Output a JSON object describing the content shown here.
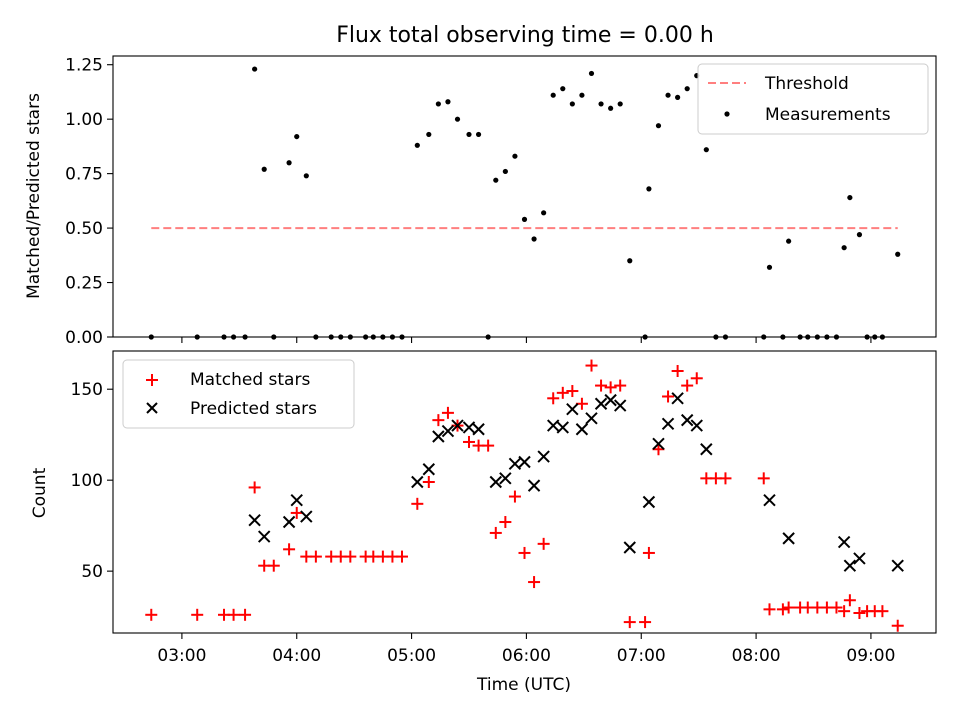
{
  "title": "Flux total observing time = 0.00 h",
  "chart_data": [
    {
      "type": "scatter",
      "ylabel": "Matched/Predicted stars",
      "ylim": [
        0,
        1.29
      ],
      "yticks": [
        "0.00",
        "0.25",
        "0.50",
        "0.75",
        "1.00",
        "1.25"
      ],
      "legend_position": "top-right",
      "threshold": {
        "name": "Threshold",
        "value": 0.5,
        "x_range": [
          "02:44",
          "09:14"
        ],
        "color": "#ff7f7f"
      },
      "series": [
        {
          "name": "Measurements",
          "color": "#000000",
          "points": [
            [
              "02:44",
              0.0
            ],
            [
              "03:08",
              0.0
            ],
            [
              "03:22",
              0.0
            ],
            [
              "03:27",
              0.0
            ],
            [
              "03:33",
              0.0
            ],
            [
              "03:38",
              1.23
            ],
            [
              "03:43",
              0.77
            ],
            [
              "03:48",
              0.0
            ],
            [
              "03:56",
              0.8
            ],
            [
              "04:00",
              0.92
            ],
            [
              "04:05",
              0.74
            ],
            [
              "04:10",
              0.0
            ],
            [
              "04:18",
              0.0
            ],
            [
              "04:23",
              0.0
            ],
            [
              "04:28",
              0.0
            ],
            [
              "04:36",
              0.0
            ],
            [
              "04:40",
              0.0
            ],
            [
              "04:45",
              0.0
            ],
            [
              "04:50",
              0.0
            ],
            [
              "04:55",
              0.0
            ],
            [
              "05:03",
              0.88
            ],
            [
              "05:09",
              0.93
            ],
            [
              "05:14",
              1.07
            ],
            [
              "05:19",
              1.08
            ],
            [
              "05:24",
              1.0
            ],
            [
              "05:30",
              0.93
            ],
            [
              "05:35",
              0.93
            ],
            [
              "05:40",
              0.0
            ],
            [
              "05:44",
              0.72
            ],
            [
              "05:49",
              0.76
            ],
            [
              "05:54",
              0.83
            ],
            [
              "05:59",
              0.54
            ],
            [
              "06:04",
              0.45
            ],
            [
              "06:09",
              0.57
            ],
            [
              "06:14",
              1.11
            ],
            [
              "06:19",
              1.14
            ],
            [
              "06:24",
              1.07
            ],
            [
              "06:29",
              1.11
            ],
            [
              "06:34",
              1.21
            ],
            [
              "06:39",
              1.07
            ],
            [
              "06:44",
              1.05
            ],
            [
              "06:49",
              1.07
            ],
            [
              "06:54",
              0.35
            ],
            [
              "07:02",
              0.0
            ],
            [
              "07:04",
              0.68
            ],
            [
              "07:09",
              0.97
            ],
            [
              "07:14",
              1.11
            ],
            [
              "07:19",
              1.1
            ],
            [
              "07:24",
              1.14
            ],
            [
              "07:29",
              1.2
            ],
            [
              "07:34",
              0.86
            ],
            [
              "07:39",
              0.0
            ],
            [
              "07:44",
              0.0
            ],
            [
              "08:04",
              0.0
            ],
            [
              "08:07",
              0.32
            ],
            [
              "08:14",
              0.0
            ],
            [
              "08:17",
              0.44
            ],
            [
              "08:23",
              0.0
            ],
            [
              "08:27",
              0.0
            ],
            [
              "08:32",
              0.0
            ],
            [
              "08:37",
              0.0
            ],
            [
              "08:42",
              0.0
            ],
            [
              "08:46",
              0.41
            ],
            [
              "08:49",
              0.64
            ],
            [
              "08:54",
              0.47
            ],
            [
              "08:58",
              0.0
            ],
            [
              "09:02",
              0.0
            ],
            [
              "09:06",
              0.0
            ],
            [
              "09:14",
              0.38
            ]
          ]
        }
      ]
    },
    {
      "type": "scatter",
      "xlabel": "Time (UTC)",
      "ylabel": "Count",
      "xlim": [
        "02:24",
        "09:34"
      ],
      "ylim": [
        16,
        171
      ],
      "xticks": [
        "03:00",
        "04:00",
        "05:00",
        "06:00",
        "07:00",
        "08:00",
        "09:00"
      ],
      "yticks": [
        "50",
        "100",
        "150"
      ],
      "legend_position": "top-left",
      "series": [
        {
          "name": "Matched stars",
          "color": "#ff0000",
          "marker": "plus",
          "points": [
            [
              "02:44",
              26
            ],
            [
              "03:08",
              26
            ],
            [
              "03:22",
              26
            ],
            [
              "03:27",
              26
            ],
            [
              "03:33",
              26
            ],
            [
              "03:38",
              96
            ],
            [
              "03:43",
              53
            ],
            [
              "03:48",
              53
            ],
            [
              "03:56",
              62
            ],
            [
              "04:00",
              82
            ],
            [
              "04:05",
              58
            ],
            [
              "04:10",
              58
            ],
            [
              "04:18",
              58
            ],
            [
              "04:23",
              58
            ],
            [
              "04:28",
              58
            ],
            [
              "04:36",
              58
            ],
            [
              "04:40",
              58
            ],
            [
              "04:45",
              58
            ],
            [
              "04:50",
              58
            ],
            [
              "04:55",
              58
            ],
            [
              "05:03",
              87
            ],
            [
              "05:09",
              99
            ],
            [
              "05:14",
              133
            ],
            [
              "05:19",
              137
            ],
            [
              "05:24",
              130
            ],
            [
              "05:30",
              121
            ],
            [
              "05:35",
              119
            ],
            [
              "05:40",
              119
            ],
            [
              "05:44",
              71
            ],
            [
              "05:49",
              77
            ],
            [
              "05:54",
              91
            ],
            [
              "05:59",
              60
            ],
            [
              "06:04",
              44
            ],
            [
              "06:09",
              65
            ],
            [
              "06:14",
              145
            ],
            [
              "06:19",
              148
            ],
            [
              "06:24",
              149
            ],
            [
              "06:29",
              142
            ],
            [
              "06:34",
              163
            ],
            [
              "06:39",
              152
            ],
            [
              "06:44",
              151
            ],
            [
              "06:49",
              152
            ],
            [
              "06:54",
              22
            ],
            [
              "07:02",
              22
            ],
            [
              "07:04",
              60
            ],
            [
              "07:09",
              117
            ],
            [
              "07:14",
              146
            ],
            [
              "07:19",
              160
            ],
            [
              "07:24",
              152
            ],
            [
              "07:29",
              156
            ],
            [
              "07:34",
              101
            ],
            [
              "07:39",
              101
            ],
            [
              "07:44",
              101
            ],
            [
              "08:04",
              101
            ],
            [
              "08:07",
              29
            ],
            [
              "08:14",
              29
            ],
            [
              "08:17",
              30
            ],
            [
              "08:23",
              30
            ],
            [
              "08:27",
              30
            ],
            [
              "08:32",
              30
            ],
            [
              "08:37",
              30
            ],
            [
              "08:42",
              30
            ],
            [
              "08:46",
              28
            ],
            [
              "08:49",
              34
            ],
            [
              "08:54",
              27
            ],
            [
              "08:58",
              28
            ],
            [
              "09:02",
              28
            ],
            [
              "09:06",
              28
            ],
            [
              "09:14",
              20
            ]
          ]
        },
        {
          "name": "Predicted stars",
          "color": "#000000",
          "marker": "x",
          "points": [
            [
              "03:38",
              78
            ],
            [
              "03:43",
              69
            ],
            [
              "03:56",
              77
            ],
            [
              "04:00",
              89
            ],
            [
              "04:05",
              80
            ],
            [
              "05:03",
              99
            ],
            [
              "05:09",
              106
            ],
            [
              "05:14",
              124
            ],
            [
              "05:19",
              127
            ],
            [
              "05:24",
              130
            ],
            [
              "05:30",
              129
            ],
            [
              "05:35",
              128
            ],
            [
              "05:44",
              99
            ],
            [
              "05:49",
              101
            ],
            [
              "05:54",
              109
            ],
            [
              "05:59",
              110
            ],
            [
              "06:04",
              97
            ],
            [
              "06:09",
              113
            ],
            [
              "06:14",
              130
            ],
            [
              "06:19",
              129
            ],
            [
              "06:24",
              139
            ],
            [
              "06:29",
              128
            ],
            [
              "06:34",
              134
            ],
            [
              "06:39",
              142
            ],
            [
              "06:44",
              144
            ],
            [
              "06:49",
              141
            ],
            [
              "06:54",
              63
            ],
            [
              "07:04",
              88
            ],
            [
              "07:09",
              120
            ],
            [
              "07:14",
              131
            ],
            [
              "07:19",
              145
            ],
            [
              "07:24",
              133
            ],
            [
              "07:29",
              130
            ],
            [
              "07:34",
              117
            ],
            [
              "08:07",
              89
            ],
            [
              "08:17",
              68
            ],
            [
              "08:46",
              66
            ],
            [
              "08:49",
              53
            ],
            [
              "08:54",
              57
            ],
            [
              "09:14",
              53
            ]
          ]
        }
      ]
    }
  ]
}
